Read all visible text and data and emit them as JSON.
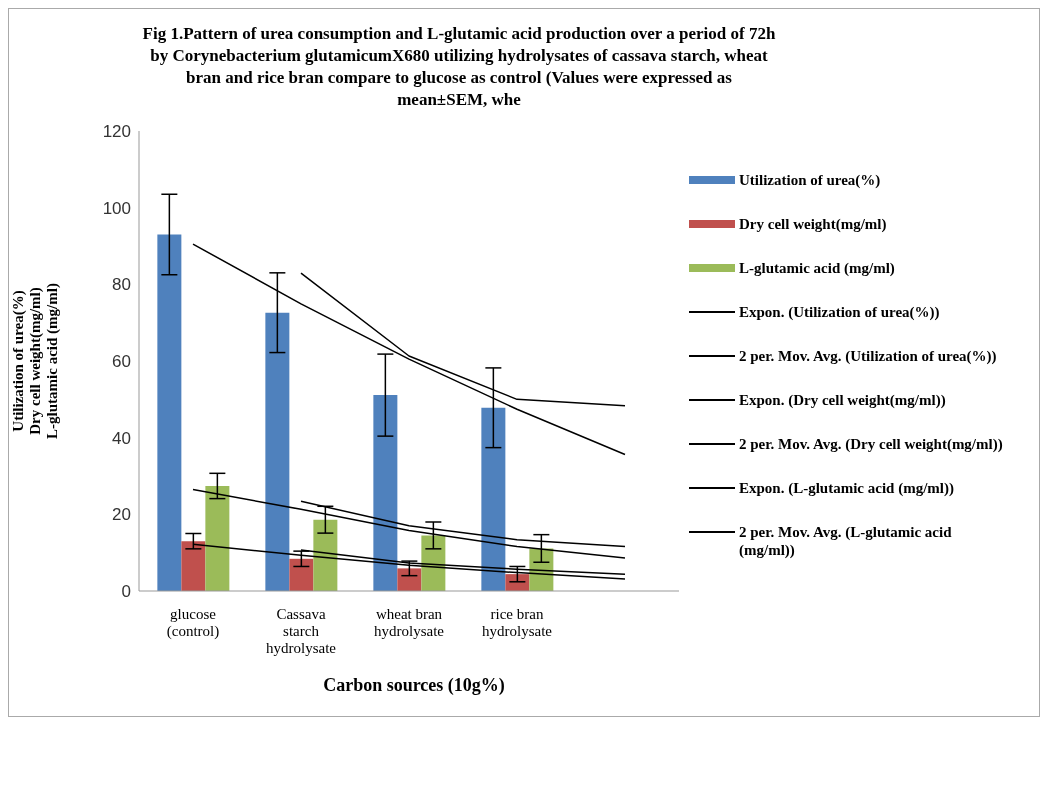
{
  "chart_data": {
    "type": "bar",
    "title": "Fig 1.Pattern of urea consumption  and L-glutamic  acid production  over a period of 72h by Corynebacterium glutamicumX680 utilizing hydrolysates  of cassava starch, wheat bran  and  rice bran  compare  to glucose as control (Values were  expressed  as mean±SEM,  whe",
    "xlabel": "Carbon  sources (10g%)",
    "ylabel": "Utilization of urea(%)\nDry cell weight(mg/ml)\nL-glutamic acid (mg/ml)",
    "categories": [
      "glucose (control)",
      "Cassava starch hydrolysate",
      "wheat bran hydrolysate",
      "rice bran hydrolysate",
      null
    ],
    "series": [
      {
        "name": "Utilization of urea(%)",
        "color": "#4f81bd",
        "values": [
          93,
          72.6,
          51.1,
          47.8,
          null
        ],
        "errors": [
          10.5,
          10.4,
          10.7,
          10.4,
          null
        ]
      },
      {
        "name": "Dry cell weight(mg/ml)",
        "color": "#c0504d",
        "values": [
          13,
          8.4,
          5.9,
          4.4,
          null
        ],
        "errors": [
          2,
          2,
          1.9,
          2,
          null
        ]
      },
      {
        "name": "L-glutamic acid (mg/ml)",
        "color": "#9bbb59",
        "values": [
          27.4,
          18.6,
          14.5,
          11.1,
          null
        ],
        "errors": [
          3.3,
          3.5,
          3.5,
          3.6,
          null
        ]
      },
      {
        "name": "Expon. (Utilization of urea(%))",
        "type": "line",
        "color": "#000000",
        "values": [
          90.5,
          74.9,
          60.5,
          47.4,
          35.6
        ]
      },
      {
        "name": "2 per. Mov. Avg. (Utilization of urea(%))",
        "type": "line",
        "color": "#000000",
        "values": [
          null,
          82.9,
          61.3,
          50,
          48.3
        ]
      },
      {
        "name": "Expon. (Dry cell weight(mg/ml))",
        "type": "line",
        "color": "#000000",
        "values": [
          12.2,
          9.3,
          6.7,
          4.8,
          3.1
        ]
      },
      {
        "name": "2 per. Mov. Avg. (Dry cell weight(mg/ml))",
        "type": "line",
        "color": "#000000",
        "values": [
          null,
          10.7,
          7.3,
          5.7,
          4.4
        ]
      },
      {
        "name": "Expon. (L-glutamic acid (mg/ml))",
        "type": "line",
        "color": "#000000",
        "values": [
          26.5,
          21.3,
          15.8,
          11.6,
          8.6
        ]
      },
      {
        "name": "2 per. Mov. Avg. (L-glutamic acid (mg/ml))",
        "type": "line",
        "color": "#000000",
        "values": [
          null,
          23.4,
          17,
          13.4,
          11.6
        ]
      }
    ],
    "ylim": [
      0,
      120
    ],
    "yticks": [
      0,
      20,
      40,
      60,
      80,
      100,
      120
    ],
    "grid": false,
    "legend": "right",
    "marker": "none",
    "line_style": "solid"
  }
}
